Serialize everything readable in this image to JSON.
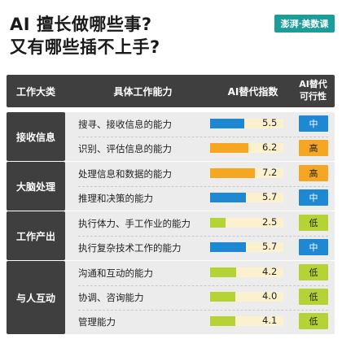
{
  "title_line1": "AI 擅长做哪些事?",
  "title_line2": "又有哪些插不上手?",
  "logo_text": "澎湃·美数课",
  "headers": {
    "category": "工作大类",
    "ability": "具体工作能力",
    "index": "AI替代指数",
    "feasibility_line1": "AI替代",
    "feasibility_line2": "可行性"
  },
  "colors": {
    "high": "#f5a623",
    "medium": "#1e88d2",
    "low": "#b5d334",
    "header_bg": "#3f3f3f",
    "group_bg": "#ececec",
    "track": "#fbf1cf"
  },
  "chart_data": {
    "type": "table",
    "index_max": 10,
    "groups": [
      {
        "category": "接收信息",
        "rows": [
          {
            "ability": "搜寻、接收信息的能力",
            "index": 5.5,
            "feasibility": "中",
            "level": "medium"
          },
          {
            "ability": "识别、评估信息的能力",
            "index": 6.2,
            "feasibility": "高",
            "level": "high"
          }
        ]
      },
      {
        "category": "大脑处理",
        "rows": [
          {
            "ability": "处理信息和数据的能力",
            "index": 7.2,
            "feasibility": "高",
            "level": "high"
          },
          {
            "ability": "推理和决策的能力",
            "index": 5.7,
            "feasibility": "中",
            "level": "medium"
          }
        ]
      },
      {
        "category": "工作产出",
        "rows": [
          {
            "ability": "执行体力、手工作业的能力",
            "index": 2.5,
            "feasibility": "低",
            "level": "low"
          },
          {
            "ability": "执行复杂技术工作的能力",
            "index": 5.7,
            "feasibility": "中",
            "level": "medium"
          }
        ]
      },
      {
        "category": "与人互动",
        "rows": [
          {
            "ability": "沟通和互动的能力",
            "index": 4.2,
            "feasibility": "低",
            "level": "low"
          },
          {
            "ability": "协调、咨询能力",
            "index": 4.0,
            "feasibility": "低",
            "level": "low"
          },
          {
            "ability": "管理能力",
            "index": 4.1,
            "feasibility": "低",
            "level": "low"
          }
        ]
      }
    ]
  }
}
